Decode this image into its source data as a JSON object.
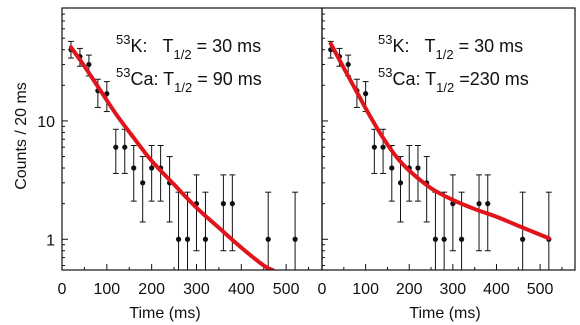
{
  "chart_data": [
    {
      "type": "scatter",
      "panel": "left",
      "scale_y": "log",
      "xlim": [
        0,
        580
      ],
      "ylim": [
        0.55,
        90
      ],
      "x_ticks": [
        0,
        100,
        200,
        300,
        400,
        500
      ],
      "y_ticks": [
        1,
        10
      ],
      "y_tick_labels": [
        "1",
        "10"
      ],
      "xlabel": "Time (ms)",
      "ylabel": "Counts / 20 ms",
      "grid": false,
      "annotations": [
        {
          "pre": "53",
          "main": "K:",
          "gap": "T",
          "sub": "1/2",
          "tail": " = 30 ms"
        },
        {
          "pre": "53",
          "main": "Ca: T",
          "sub": "1/2",
          "tail": " = 90 ms"
        }
      ],
      "series": [
        {
          "kind": "data_points",
          "x": [
            20,
            40,
            60,
            80,
            100,
            120,
            140,
            160,
            180,
            200,
            220,
            240,
            260,
            280,
            300,
            320,
            360,
            380,
            460,
            520
          ],
          "y": [
            40,
            35,
            30,
            18,
            17,
            6,
            6,
            4,
            3,
            4,
            4,
            3,
            1,
            1,
            2,
            1,
            2,
            2,
            1,
            1
          ],
          "err_low": [
            34,
            29,
            24,
            13,
            12,
            3.6,
            3.6,
            2.1,
            1.4,
            2.1,
            2.1,
            1.4,
            0.55,
            0.55,
            0.8,
            0.55,
            0.8,
            0.8,
            0.55,
            0.55
          ],
          "err_high": [
            47,
            41,
            36,
            22.5,
            21.5,
            8.5,
            8.5,
            6.2,
            5,
            6.2,
            6.2,
            5,
            2.5,
            2.5,
            3.5,
            2.5,
            3.5,
            3.5,
            2.5,
            2.5
          ],
          "color": "#111111"
        },
        {
          "kind": "fit_curve",
          "x": [
            20,
            50,
            80,
            120,
            160,
            200,
            250,
            300,
            350,
            400,
            450,
            470
          ],
          "y": [
            42,
            29,
            19.5,
            11.5,
            7.2,
            4.6,
            2.9,
            1.85,
            1.25,
            0.85,
            0.6,
            0.55
          ],
          "color": "#e0151b"
        }
      ]
    },
    {
      "type": "scatter",
      "panel": "right",
      "scale_y": "log",
      "xlim": [
        0,
        580
      ],
      "ylim": [
        0.55,
        90
      ],
      "x_ticks": [
        0,
        100,
        200,
        300,
        400,
        500
      ],
      "y_ticks": [
        1,
        10
      ],
      "xlabel": "Time (ms)",
      "ylabel": "",
      "grid": false,
      "annotations": [
        {
          "pre": "53",
          "main": "K:",
          "gap": "T",
          "sub": "1/2",
          "tail": " = 30 ms"
        },
        {
          "pre": "53",
          "main": "Ca: T",
          "sub": "1/2",
          "tail": " =230 ms"
        }
      ],
      "series": [
        {
          "kind": "data_points",
          "x": [
            20,
            40,
            60,
            80,
            100,
            120,
            140,
            160,
            180,
            200,
            220,
            240,
            260,
            280,
            300,
            320,
            360,
            380,
            460,
            520
          ],
          "y": [
            40,
            35,
            30,
            18,
            17,
            6,
            6,
            4,
            3,
            4,
            4,
            3,
            1,
            1,
            2,
            1,
            2,
            2,
            1,
            1
          ],
          "err_low": [
            34,
            29,
            24,
            13,
            12,
            3.6,
            3.6,
            2.1,
            1.4,
            2.1,
            2.1,
            1.4,
            0.55,
            0.55,
            0.8,
            0.55,
            0.8,
            0.8,
            0.55,
            0.55
          ],
          "err_high": [
            47,
            41,
            36,
            22.5,
            21.5,
            8.5,
            8.5,
            6.2,
            5,
            6.2,
            6.2,
            5,
            2.5,
            2.5,
            3.5,
            2.5,
            3.5,
            3.5,
            2.5,
            2.5
          ],
          "color": "#111111"
        },
        {
          "kind": "fit_curve",
          "x": [
            20,
            50,
            80,
            110,
            140,
            170,
            200,
            250,
            300,
            350,
            400,
            450,
            520
          ],
          "y": [
            45,
            28,
            17.5,
            11,
            7.2,
            5,
            3.8,
            2.7,
            2.15,
            1.8,
            1.55,
            1.3,
            1.02
          ],
          "color": "#e0151b"
        }
      ]
    }
  ]
}
